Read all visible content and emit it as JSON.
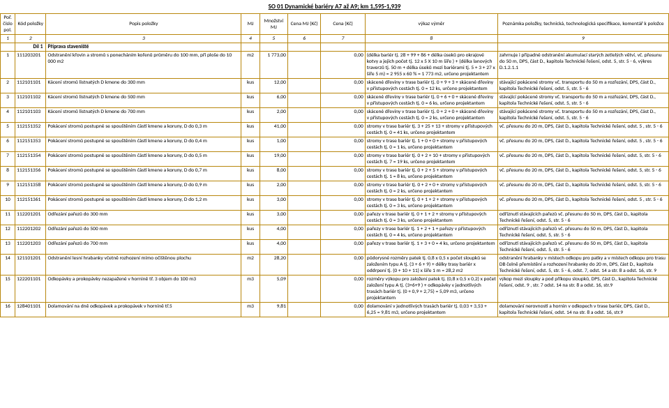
{
  "title": "SO 01 Dynamické bariéry A7 až A9; km 1,595-1,939",
  "headers": {
    "por": "Poř. číslo pol.",
    "kod": "Kód položky",
    "popis": "Popis položky",
    "mj": "MJ",
    "mnoz": "Množství MJ",
    "cenamj": "Cena MJ (Kč)",
    "cena": "Cena (Kč)",
    "vykaz": "výkaz výměr",
    "pozn": "Poznámka položky, technická, technologická specifikace, komentář k položce"
  },
  "colnums": [
    "1",
    "2",
    "3",
    "4",
    "5",
    "6",
    "7",
    "8",
    "9"
  ],
  "dil": {
    "label": "Díl 1",
    "name": "Příprava staveniště"
  },
  "rows": [
    {
      "por": "1",
      "kod": "111203201",
      "popis": "Odstranění křovin a stromů s ponecháním kořenů průměru do 100 mm, při ploše do 10 000 m2",
      "mj": "m2",
      "mnoz": "1 773,00",
      "cena": "0,00",
      "vykaz": "(délka bariér tj. 28 + 99 + 86 + délka úseků pro okrajové kotvy a jejich počet tj. 12 x 5 X 10 m šíře ) + (délka lanových traverzů tj. 50 m + délka úseků mezi bariérami tj. 5 + 3 + 27 x šíře 5 m) = 2 955 x 60 % = 1 773 m2, určeno projektantem",
      "pozn": "zahrnuje i případné odstranění akumulací starých zetlelých větví, vč. přesunu do 50 m, DPS, část D., kapitola Technické řešení, odst. 5, str. 5 - 6, výkres D.1.2.1.1"
    },
    {
      "por": "2",
      "kod": "112101101",
      "popis": "Kácení stromů listnatých D kmene do 300 mm",
      "mj": "kus",
      "mnoz": "12,00",
      "cena": "0,00",
      "vykaz": "skácené dřeviny v trase bariér tj. 0 + 9 + 3 + skácené dřeviny v přístupových cestách tj. 0 = 12 ks, určeno projektantem",
      "pozn": "stávající pokácené stromy vč. transportu do 50 m a rozřezání, DPS, část D., kapitola Technické řešení, odst. 5, str. 5 - 6"
    },
    {
      "por": "3",
      "kod": "112101102",
      "popis": "Kácení stromů listnatých D kmene do 500 mm",
      "mj": "kus",
      "mnoz": "6,00",
      "cena": "0,00",
      "vykaz": "skácené dřeviny v trase bariér tj. 0 + 6 + 0 + skácené dřeviny v přístupových cestách tj. 0 = 6 ks, určeno projektantem",
      "pozn": "stávající pokácené stromy vč. transportu do 50 m a rozřezání, DPS, část D., kapitola Technické řešení, odst. 5, str. 5 - 6"
    },
    {
      "por": "4",
      "kod": "112101103",
      "popis": "Kácení stromů listnatých D kmene do 700 mm",
      "mj": "kus",
      "mnoz": "2,00",
      "cena": "0,00",
      "vykaz": "skácené dřeviny v trase bariér tj. 0 + 2 + 0 + skácené dřeviny v přístupových cestách tj. 0 = 2 ks, určeno projektantem",
      "pozn": "stávající pokácené stromy vč. transportu do 50 m a rozřezání, DPS, část D., kapitola Technické řešení, odst. 5, str. 5 - 6"
    },
    {
      "por": "5",
      "kod": "112151352",
      "popis": "Pokácení stromů postupné se spouštěním částí kmene a koruny, D do 0,3 m",
      "mj": "kus",
      "mnoz": "41,00",
      "cena": "0,00",
      "vykaz": "stromy v trase bariér tj. 3 + 25 + 13 + stromy v přístupových cestách tj. 0 = 41 ks, určeno projektantem",
      "pozn": "vč. přesunu do 20 m, DPS, část D., kapitola Technické řešení, odst. 5 , str. 5 - 6"
    },
    {
      "por": "6",
      "kod": "112151353",
      "popis": "Pokácení stromů postupné se spouštěním částí kmene a koruny, D do 0,4 m",
      "mj": "kus",
      "mnoz": "1,00",
      "cena": "0,00",
      "vykaz": "stromy v trase bariér tj. 1 + 0 + 0 + stromy v přístupových cestách tj. 0 = 1 ks, určeno projektantem",
      "pozn": "vč. přesunu do 20 m, DPS, část D., kapitola Technické řešení, odst. 5 , str. 5 - 6"
    },
    {
      "por": "7",
      "kod": "112151354",
      "popis": "Pokácení stromů postupné se spouštěním částí kmene a koruny, D do 0,5 m",
      "mj": "kus",
      "mnoz": "19,00",
      "cena": "0,00",
      "vykaz": "stromy v trase bariér tj. 0 + 2 + 10 + stromy v přístupových cestách tj. 7 = 19 ks, určeno projektantem",
      "pozn": "vč. přesunu do 20 m, DPS, část D., kapitola Technické řešení, odst. 5, str. 5 - 6"
    },
    {
      "por": "8",
      "kod": "112151356",
      "popis": "Pokácení stromů postupné se spouštěním částí kmene a koruny, D do 0,7 m",
      "mj": "kus",
      "mnoz": "8,00",
      "cena": "0,00",
      "vykaz": "stromy v trase bariér tj. 0 + 2 + 5 + stromy v přístupových cestách tj. 1 = 8 ks, určeno projektantem",
      "pozn": "vč. přesunu do 20 m, DPS, část D., kapitola Technické řešení, odst. 5, str. 5 - 6"
    },
    {
      "por": "9",
      "kod": "112151358",
      "popis": "Pokácení stromů postupné se spouštěním částí kmene a koruny, D do 0,9 m",
      "mj": "kus",
      "mnoz": "2,00",
      "cena": "0,00",
      "vykaz": "stromy v trase bariér tj. 0 + 2 + 0 + stromy v přístupových cestách tj. 0 = 2 ks, určeno projektantem",
      "pozn": "vč. přesunu do 20 m, DPS, část D., kapitola Technické řešení, odst. 5, str. 5 - 6"
    },
    {
      "por": "10",
      "kod": "112151361",
      "popis": "Pokácení stromů postupné se spouštěním částí kmene a koruny, D do 1,2 m",
      "mj": "kus",
      "mnoz": "3,00",
      "cena": "0,00",
      "vykaz": "stromy v trase bariér tj. 0 + 1 + 2 + stromy v přístupových cestách tj. 0 = 3 ks, určeno projektantem",
      "pozn": "vč. přesunu do 20 m, DPS, část D., kapitola Technické řešení, odst. 5 , str. 5 - 6"
    },
    {
      "por": "11",
      "kod": "112201201",
      "popis": "Odřezání pařezů do 300 mm",
      "mj": "kus",
      "mnoz": "3,00",
      "cena": "0,00",
      "vykaz": "pařezy v trase bariér tj. 0 + 1 + 2 + stromy v přístupových cestách tj. 0 = 3 ks, určeno projektantem",
      "pozn": "odříznutí stávajících pařezů vč. přesunu do 50 m, DPS, část D., kapitola Technické řešení, odst. 5, str. 5 - 6"
    },
    {
      "por": "12",
      "kod": "112201202",
      "popis": "Odřezání pařezů do 500 mm",
      "mj": "kus",
      "mnoz": "4,00",
      "cena": "0,00",
      "vykaz": "pařezy v trase bariér tj. 1 + 2 + 1 + pařezy v přístupových cestách tj. 0 = 4 ks, určeno projektantem",
      "pozn": "odříznutí stávajících pařezů vč. přesunu do 50 m, DPS, část D., kapitola Technické řešení, odst. 5, str. 5 - 6"
    },
    {
      "por": "13",
      "kod": "112201203",
      "popis": "Odřezání pařezů do 700 mm",
      "mj": "kus",
      "mnoz": "4,00",
      "cena": "0,00",
      "vykaz": "pařezy v trase bariér tj. 1 + 3 + 0 = 4 ks, určeno projektantem",
      "pozn": "odříznutí stávajících pařezů vč. přesunu do 50 m, DPS, část D., kapitola Technické řešení, odst. 5, str. 5 - 6"
    },
    {
      "por": "14",
      "kod": "121101201",
      "popis": "Odstranění lesní hrabanky včetně rozhození mimo očištěnou plochu",
      "mj": "m2",
      "mnoz": "28,20",
      "cena": "0,00",
      "vykaz": "půdorysné rozměry patek tj. 0,8 x 0,5 x počet sloupků se založením typu A tj. (3 + 6 + 9) + délky trasy bariér x oddrpení tj. (0 + 10 + 11) x šíře 1 m = 28,2 m2",
      "pozn": "odstranění hrabanky v místech odkopu pro patky a v místech odkopu pro trasu DB čelně přemístění a rozhození hrabanky do 20 m, DPS, část D., kapitola Technické řešení, odst. 5, str. 5 - 6, odst. 7, odst. 14 a str. 8 a odst. 16, str. 9"
    },
    {
      "por": "15",
      "kod": "122201101",
      "popis": "Odkopávky a prokopávky nezapažené v hornině tř. 3 objem do 100 m3",
      "mj": "m3",
      "mnoz": "5,09",
      "cena": "0,00",
      "vykaz": "rozměry výkopu pro založení patek tj. (0,8 x 0,5 x 0,2) x počet založení typu A tj. (3+6+9 ) + odkopávky v jednotlivých trasách bariér tj. (0 + 0,9 + 2,75) = 5,09 m3, určeno projektantem",
      "pozn": "výkop mezi sloupky a pod příkopu sloupků, DPS, část D., kapitola Technické řešení, odst. 9 , str. 7 odst. 14 na str. 8 a odst. 16, str.9"
    },
    {
      "por": "16",
      "kod": "128401101",
      "popis": "Dolamování na dně odkopávek a prokopávek v hornině tř.5",
      "mj": "m3",
      "mnoz": "9,81",
      "cena": "0,00",
      "vykaz": "dolamování v jednotlivých trasách bariér tj. 0,03 + 3,53 + 6,25 = 9,81 m3, určeno projektantem",
      "pozn": "dolamování nerovností a hornin v odkopech v trase bariér, DPS, část D., kapitola Technické řešení, odst. 14 na str. 8 a odst. 16, str.9"
    }
  ]
}
